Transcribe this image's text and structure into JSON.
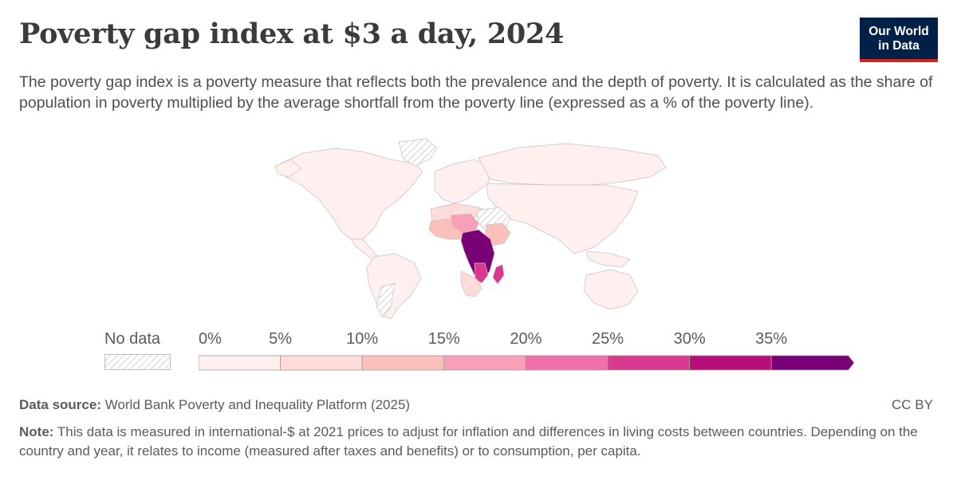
{
  "header": {
    "title": "Poverty gap index at $3 a day, 2024",
    "subtitle": "The poverty gap index is a poverty measure that reflects both the prevalence and the depth of poverty. It is calculated as the share of population in poverty multiplied by the average shortfall from the poverty line (expressed as a % of the poverty line)."
  },
  "logo": {
    "line1": "Our World",
    "line2": "in Data",
    "bg_color": "#002147",
    "accent_color": "#ce261e"
  },
  "legend": {
    "no_data_label": "No data",
    "ticks": [
      "0%",
      "5%",
      "10%",
      "15%",
      "20%",
      "25%",
      "30%",
      "35%"
    ],
    "colors": [
      "#fdf0ee",
      "#fddcd9",
      "#fbc0ba",
      "#f7a0b8",
      "#f071a9",
      "#d9388f",
      "#b80e7a",
      "#7a0077"
    ],
    "no_data_pattern": "hatched-grey"
  },
  "footer": {
    "source_label": "Data source:",
    "source_text": " World Bank Poverty and Inequality Platform (2025)",
    "license": "CC BY",
    "note_label": "Note:",
    "note_text": " This data is measured in international-$ at 2021 prices to adjust for inflation and differences in living costs between countries. Depending on the country and year, it relates to income (measured after taxes and benefits) or to consumption, per capita."
  },
  "chart_data": {
    "type": "choropleth-map",
    "metric": "Poverty gap index at $3 a day",
    "year": 2024,
    "unit": "%",
    "bins": [
      {
        "range": [
          0,
          5
        ],
        "color": "#fdf0ee"
      },
      {
        "range": [
          5,
          10
        ],
        "color": "#fddcd9"
      },
      {
        "range": [
          10,
          15
        ],
        "color": "#fbc0ba"
      },
      {
        "range": [
          15,
          20
        ],
        "color": "#f7a0b8"
      },
      {
        "range": [
          20,
          25
        ],
        "color": "#f071a9"
      },
      {
        "range": [
          25,
          30
        ],
        "color": "#d9388f"
      },
      {
        "range": [
          30,
          35
        ],
        "color": "#b80e7a"
      },
      {
        "range": [
          35,
          40
        ],
        "color": "#7a0077"
      }
    ],
    "regions": [
      {
        "name": "North America",
        "bin": 0
      },
      {
        "name": "Greenland",
        "bin": -1
      },
      {
        "name": "South America",
        "bin": 0
      },
      {
        "name": "Europe",
        "bin": 0
      },
      {
        "name": "Russia",
        "bin": 0
      },
      {
        "name": "Asia",
        "bin": 0
      },
      {
        "name": "Australia",
        "bin": 0
      },
      {
        "name": "North Africa",
        "bin": 1
      },
      {
        "name": "Libya",
        "bin": -1
      },
      {
        "name": "West Africa",
        "bin": 2
      },
      {
        "name": "Sahel",
        "bin": 3
      },
      {
        "name": "East Africa",
        "bin": 2
      },
      {
        "name": "Central Africa",
        "bin": 7
      },
      {
        "name": "Madagascar",
        "bin": 5
      },
      {
        "name": "Southern Africa",
        "bin": 1
      }
    ]
  }
}
